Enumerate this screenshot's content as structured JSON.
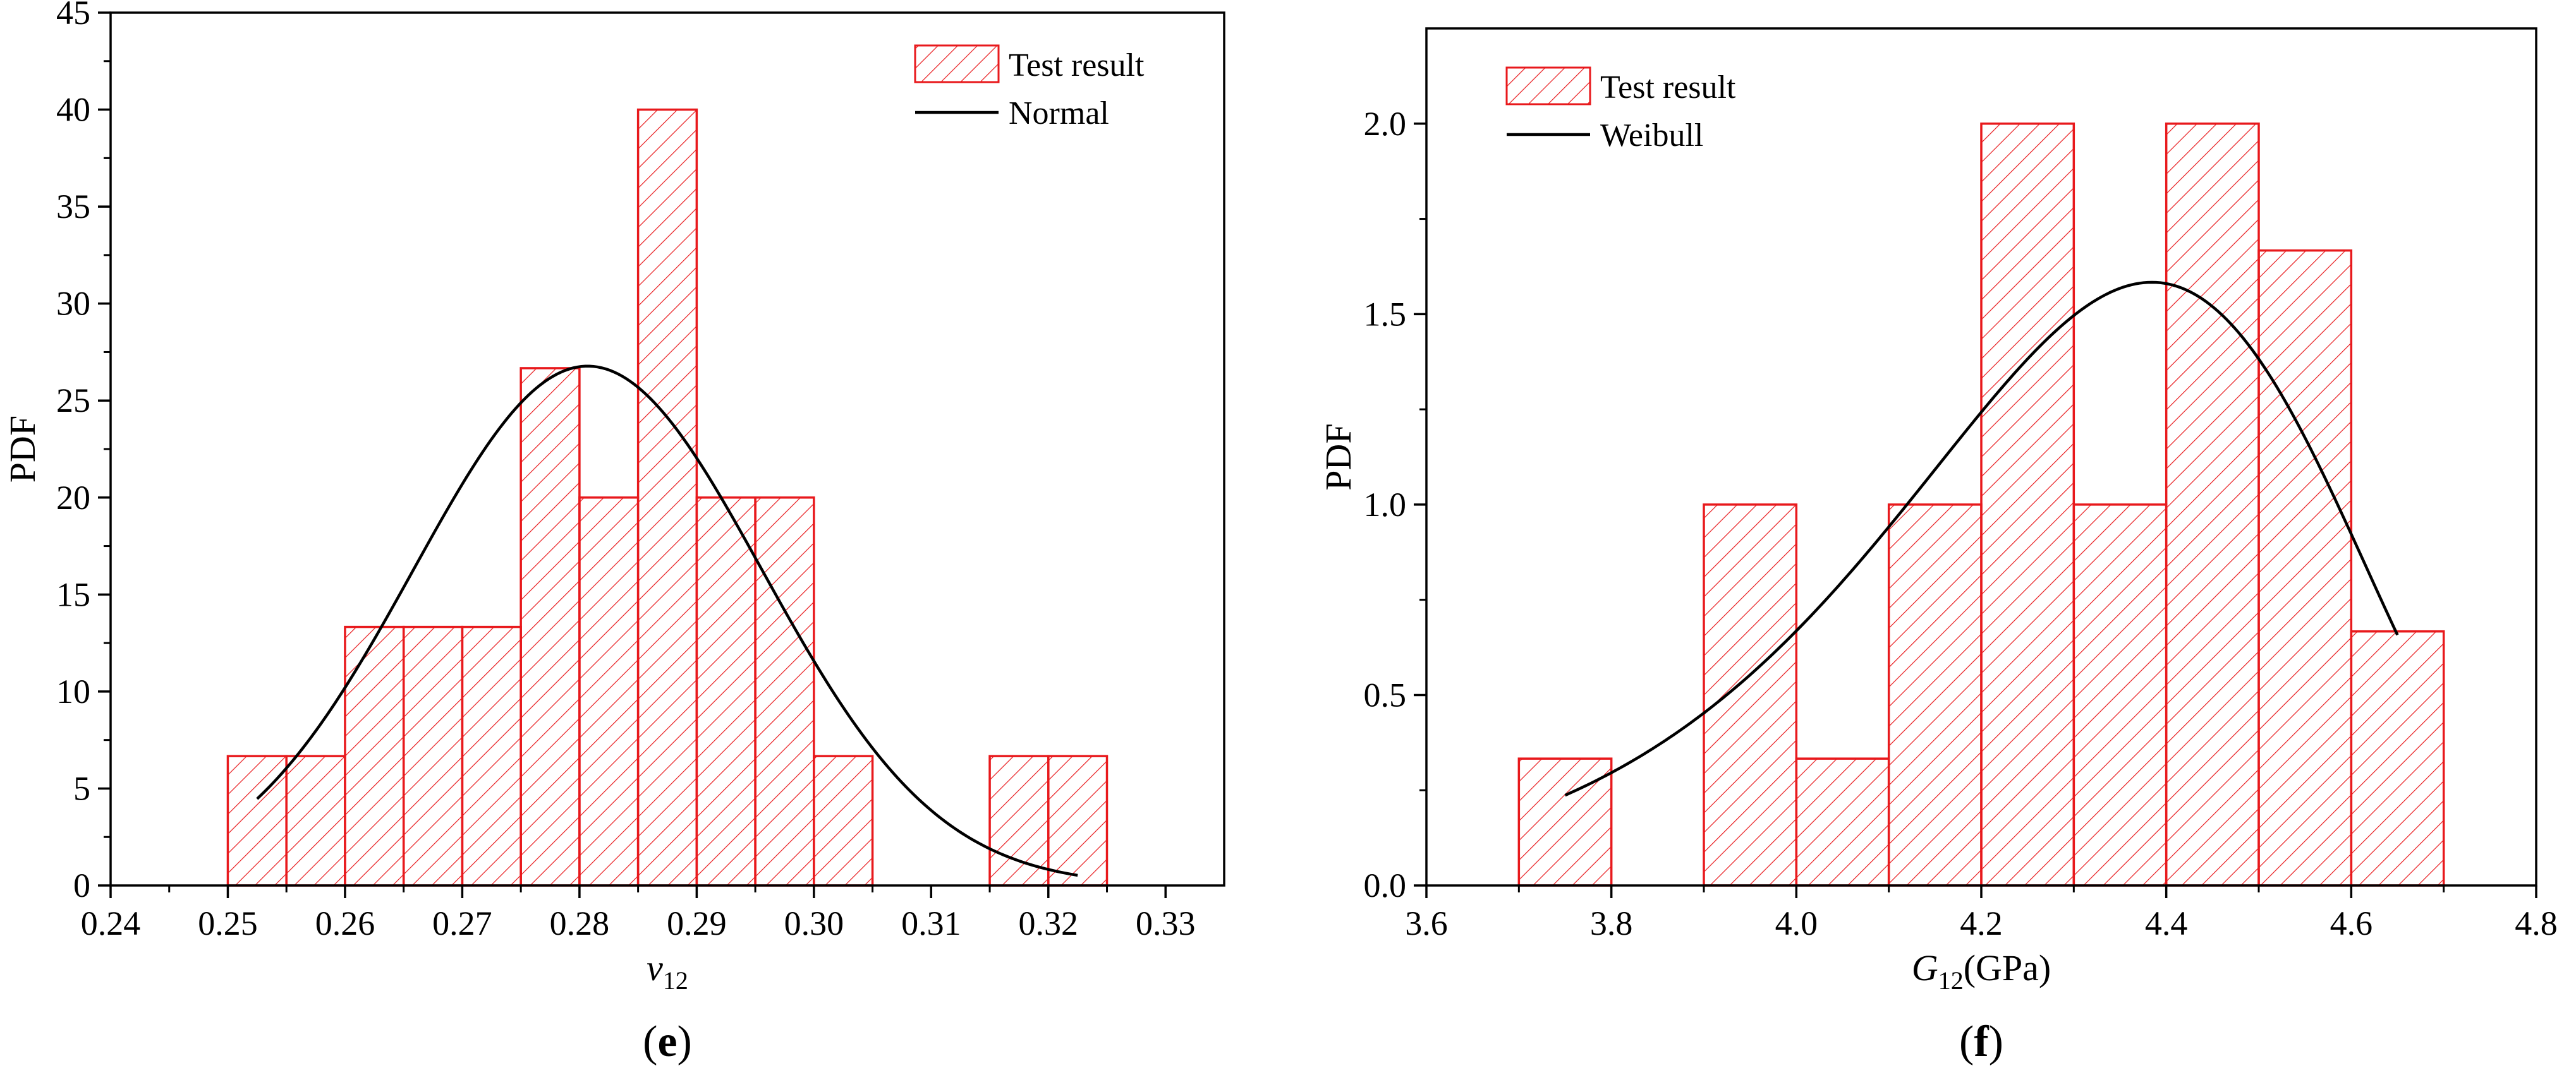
{
  "chart_data": [
    {
      "type": "bar",
      "panel_label": "e",
      "title": "",
      "xlabel": {
        "main": "v",
        "sub": "12",
        "suffix": ""
      },
      "ylabel": "PDF",
      "xlim": [
        0.24,
        0.335
      ],
      "ylim": [
        0,
        45
      ],
      "xticks": [
        0.24,
        0.25,
        0.26,
        0.27,
        0.28,
        0.29,
        0.3,
        0.31,
        0.32,
        0.33
      ],
      "xtick_decimals": 2,
      "yticks": [
        0,
        5,
        10,
        15,
        20,
        25,
        30,
        35,
        40,
        45
      ],
      "ytick_decimals": 0,
      "legend_position": "top-right",
      "series": [
        {
          "name": "Test result",
          "kind": "histogram",
          "color": "#e8191c",
          "bins": [
            {
              "x0": 0.25,
              "x1": 0.255,
              "value": 6.67
            },
            {
              "x0": 0.255,
              "x1": 0.26,
              "value": 6.67
            },
            {
              "x0": 0.26,
              "x1": 0.265,
              "value": 13.33
            },
            {
              "x0": 0.265,
              "x1": 0.27,
              "value": 13.33
            },
            {
              "x0": 0.27,
              "x1": 0.275,
              "value": 13.33
            },
            {
              "x0": 0.275,
              "x1": 0.28,
              "value": 26.67
            },
            {
              "x0": 0.28,
              "x1": 0.285,
              "value": 20.0
            },
            {
              "x0": 0.285,
              "x1": 0.29,
              "value": 40.0
            },
            {
              "x0": 0.29,
              "x1": 0.295,
              "value": 20.0
            },
            {
              "x0": 0.295,
              "x1": 0.3,
              "value": 20.0
            },
            {
              "x0": 0.3,
              "x1": 0.305,
              "value": 6.67
            },
            {
              "x0": 0.315,
              "x1": 0.32,
              "value": 6.67
            },
            {
              "x0": 0.32,
              "x1": 0.325,
              "value": 6.67
            }
          ]
        },
        {
          "name": "Normal",
          "kind": "normal-curve",
          "color": "#000000",
          "mean": 0.2807,
          "std": 0.0149,
          "x_range": [
            0.2525,
            0.3225
          ]
        }
      ]
    },
    {
      "type": "bar",
      "panel_label": "f",
      "title": "",
      "xlabel": {
        "main": "G",
        "sub": "12",
        "suffix": "(GPa)"
      },
      "ylabel": "PDF",
      "xlim": [
        3.6,
        4.8
      ],
      "ylim": [
        0,
        2.25
      ],
      "xticks": [
        3.6,
        3.8,
        4.0,
        4.2,
        4.4,
        4.6,
        4.8
      ],
      "xtick_decimals": 1,
      "yticks": [
        0.0,
        0.5,
        1.0,
        1.5,
        2.0
      ],
      "ytick_decimals": 1,
      "legend_position": "top-left",
      "series": [
        {
          "name": "Test result",
          "kind": "histogram",
          "color": "#e8191c",
          "bins": [
            {
              "x0": 3.7,
              "x1": 3.8,
              "value": 0.333
            },
            {
              "x0": 3.9,
              "x1": 4.0,
              "value": 1.0
            },
            {
              "x0": 4.0,
              "x1": 4.1,
              "value": 0.333
            },
            {
              "x0": 4.1,
              "x1": 4.2,
              "value": 1.0
            },
            {
              "x0": 4.2,
              "x1": 4.3,
              "value": 2.0
            },
            {
              "x0": 4.3,
              "x1": 4.4,
              "value": 1.0
            },
            {
              "x0": 4.4,
              "x1": 4.5,
              "value": 2.0
            },
            {
              "x0": 4.5,
              "x1": 4.6,
              "value": 1.667
            },
            {
              "x0": 4.6,
              "x1": 4.7,
              "value": 0.667
            }
          ]
        },
        {
          "name": "Weibull",
          "kind": "weibull-curve",
          "color": "#000000",
          "scale": 4.397,
          "shape": 18.9,
          "x_range": [
            3.75,
            4.65
          ]
        }
      ]
    }
  ]
}
